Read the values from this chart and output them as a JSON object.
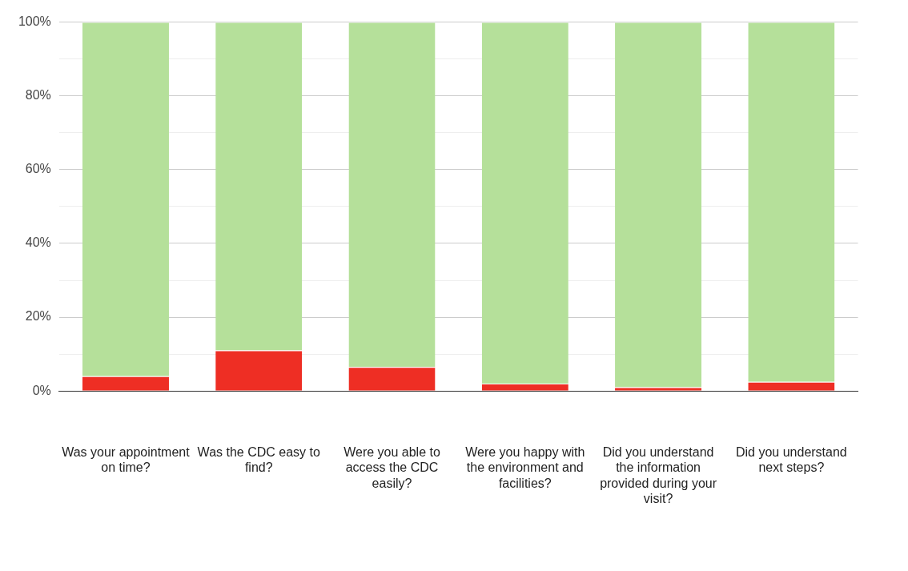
{
  "chart_data": {
    "type": "bar",
    "stacked": true,
    "categories": [
      "Was your appointment on time?",
      "Was the CDC easy to find?",
      "Were you able to access the CDC easily?",
      "Were you happy with the environment and facilities?",
      "Did you understand the information provided during your visit?",
      "Did you understand next steps?"
    ],
    "series": [
      {
        "color": "#ee2e24",
        "values": [
          4,
          11,
          6.5,
          2,
          1,
          2.5
        ]
      },
      {
        "color": "#b5e09a",
        "values": [
          96,
          89,
          93.5,
          98,
          99,
          97.5
        ]
      }
    ],
    "ylim": [
      0,
      100
    ],
    "yticks": [
      {
        "value": 0,
        "label": "0%"
      },
      {
        "value": 10,
        "label": null
      },
      {
        "value": 20,
        "label": "20%"
      },
      {
        "value": 30,
        "label": null
      },
      {
        "value": 40,
        "label": "40%"
      },
      {
        "value": 50,
        "label": null
      },
      {
        "value": 60,
        "label": "60%"
      },
      {
        "value": 70,
        "label": null
      },
      {
        "value": 80,
        "label": "80%"
      },
      {
        "value": 90,
        "label": null
      },
      {
        "value": 100,
        "label": "100%"
      }
    ],
    "grid": "y",
    "legend": false
  }
}
